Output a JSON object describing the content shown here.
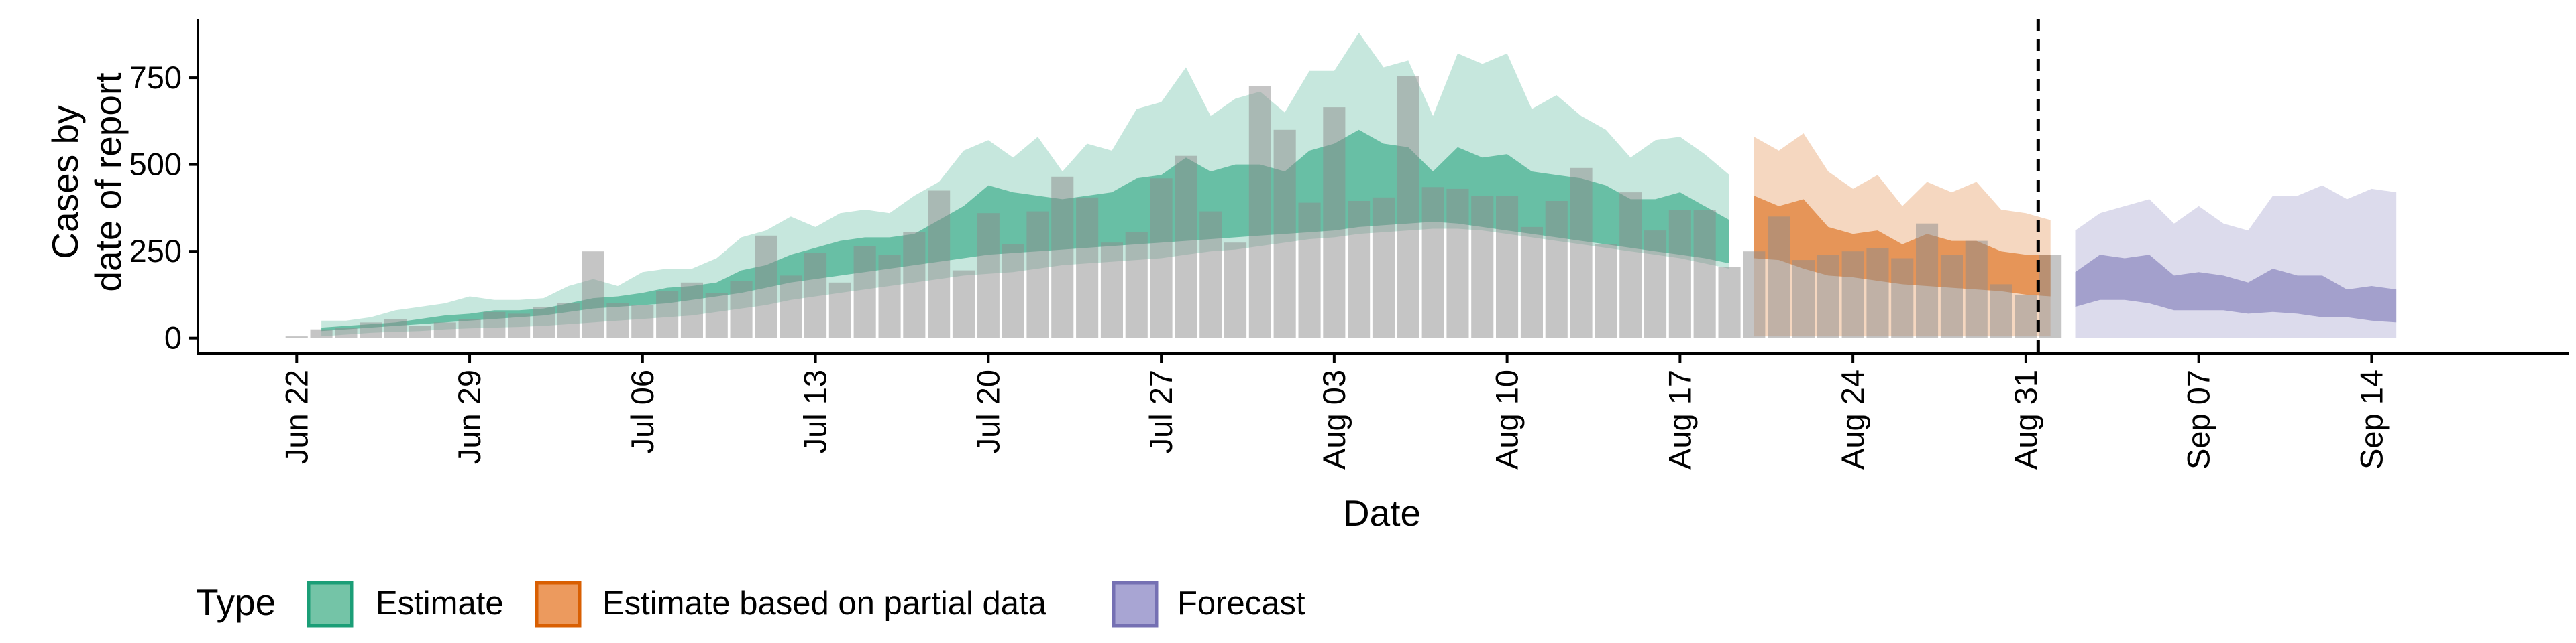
{
  "chart_data": {
    "type": "area",
    "xlabel": "Date",
    "ylabel_lines": [
      "Cases by",
      "date of report"
    ],
    "x_tick_labels": [
      "Jun 22",
      "Jun 29",
      "Jul 06",
      "Jul 13",
      "Jul 20",
      "Jul 27",
      "Aug 03",
      "Aug 10",
      "Aug 17",
      "Aug 24",
      "Aug 31",
      "Sep 07",
      "Sep 14"
    ],
    "x_tick_dates": [
      "2020-06-22",
      "2020-06-29",
      "2020-07-06",
      "2020-07-13",
      "2020-07-20",
      "2020-07-27",
      "2020-08-03",
      "2020-08-10",
      "2020-08-17",
      "2020-08-24",
      "2020-08-31",
      "2020-09-07",
      "2020-09-14"
    ],
    "xlim": [
      "2020-06-18",
      "2020-09-22"
    ],
    "y_ticks": [
      0,
      250,
      500,
      750
    ],
    "y_tick_labels": [
      "0",
      "250",
      "500",
      "750"
    ],
    "ylim": [
      -45,
      920
    ],
    "forecast_date": "2020-09-01",
    "legend": {
      "title": "Type",
      "position": "bottom",
      "items": [
        {
          "label": "Estimate",
          "color": "#1B9E77"
        },
        {
          "label": "Estimate based on partial data",
          "color": "#D95F02"
        },
        {
          "label": "Forecast",
          "color": "#7570B3"
        }
      ]
    },
    "reported_cases": {
      "dates": [
        "2020-06-22",
        "2020-06-23",
        "2020-06-24",
        "2020-06-25",
        "2020-06-26",
        "2020-06-27",
        "2020-06-28",
        "2020-06-29",
        "2020-06-30",
        "2020-07-01",
        "2020-07-02",
        "2020-07-03",
        "2020-07-04",
        "2020-07-05",
        "2020-07-06",
        "2020-07-07",
        "2020-07-08",
        "2020-07-09",
        "2020-07-10",
        "2020-07-11",
        "2020-07-12",
        "2020-07-13",
        "2020-07-14",
        "2020-07-15",
        "2020-07-16",
        "2020-07-17",
        "2020-07-18",
        "2020-07-19",
        "2020-07-20",
        "2020-07-21",
        "2020-07-22",
        "2020-07-23",
        "2020-07-24",
        "2020-07-25",
        "2020-07-26",
        "2020-07-27",
        "2020-07-28",
        "2020-07-29",
        "2020-07-30",
        "2020-07-31",
        "2020-08-01",
        "2020-08-02",
        "2020-08-03",
        "2020-08-04",
        "2020-08-05",
        "2020-08-06",
        "2020-08-07",
        "2020-08-08",
        "2020-08-09",
        "2020-08-10",
        "2020-08-11",
        "2020-08-12",
        "2020-08-13",
        "2020-08-14",
        "2020-08-15",
        "2020-08-16",
        "2020-08-17",
        "2020-08-18",
        "2020-08-19",
        "2020-08-20",
        "2020-08-21",
        "2020-08-22",
        "2020-08-23",
        "2020-08-24",
        "2020-08-25",
        "2020-08-26",
        "2020-08-27",
        "2020-08-28",
        "2020-08-29",
        "2020-08-30",
        "2020-08-31",
        "2020-09-01"
      ],
      "values": [
        5,
        25,
        30,
        45,
        55,
        35,
        45,
        55,
        75,
        70,
        90,
        100,
        250,
        100,
        95,
        135,
        160,
        130,
        165,
        295,
        180,
        245,
        160,
        265,
        240,
        305,
        425,
        195,
        360,
        270,
        365,
        465,
        405,
        275,
        305,
        460,
        525,
        365,
        275,
        725,
        600,
        390,
        665,
        395,
        405,
        755,
        435,
        430,
        410,
        410,
        320,
        395,
        490,
        270,
        420,
        310,
        370,
        370,
        205,
        250,
        350,
        225,
        240,
        250,
        260,
        230,
        330,
        240,
        280,
        155,
        125,
        240
      ]
    },
    "series": [
      {
        "name": "Estimate",
        "color": "#1B9E77",
        "dates": [
          "2020-06-23",
          "2020-06-24",
          "2020-06-25",
          "2020-06-26",
          "2020-06-27",
          "2020-06-28",
          "2020-06-29",
          "2020-06-30",
          "2020-07-01",
          "2020-07-02",
          "2020-07-03",
          "2020-07-04",
          "2020-07-05",
          "2020-07-06",
          "2020-07-07",
          "2020-07-08",
          "2020-07-09",
          "2020-07-10",
          "2020-07-11",
          "2020-07-12",
          "2020-07-13",
          "2020-07-14",
          "2020-07-15",
          "2020-07-16",
          "2020-07-17",
          "2020-07-18",
          "2020-07-19",
          "2020-07-20",
          "2020-07-21",
          "2020-07-22",
          "2020-07-23",
          "2020-07-24",
          "2020-07-25",
          "2020-07-26",
          "2020-07-27",
          "2020-07-28",
          "2020-07-29",
          "2020-07-30",
          "2020-07-31",
          "2020-08-01",
          "2020-08-02",
          "2020-08-03",
          "2020-08-04",
          "2020-08-05",
          "2020-08-06",
          "2020-08-07",
          "2020-08-08",
          "2020-08-09",
          "2020-08-10",
          "2020-08-11",
          "2020-08-12",
          "2020-08-13",
          "2020-08-14",
          "2020-08-15",
          "2020-08-16",
          "2020-08-17",
          "2020-08-18",
          "2020-08-19"
        ],
        "outer_lower": [
          5,
          10,
          15,
          18,
          20,
          25,
          28,
          30,
          32,
          35,
          40,
          45,
          50,
          55,
          60,
          65,
          75,
          85,
          95,
          110,
          120,
          130,
          140,
          150,
          160,
          170,
          180,
          185,
          190,
          200,
          210,
          215,
          220,
          225,
          230,
          240,
          250,
          255,
          265,
          275,
          285,
          290,
          300,
          305,
          310,
          315,
          315,
          310,
          300,
          290,
          280,
          270,
          260,
          250,
          240,
          230,
          215,
          200
        ],
        "outer_upper": [
          50,
          50,
          60,
          80,
          90,
          100,
          120,
          110,
          110,
          115,
          150,
          170,
          150,
          190,
          200,
          200,
          230,
          290,
          310,
          350,
          320,
          360,
          370,
          360,
          410,
          450,
          540,
          570,
          520,
          580,
          480,
          560,
          540,
          660,
          680,
          780,
          640,
          690,
          710,
          650,
          770,
          770,
          880,
          780,
          800,
          640,
          820,
          790,
          820,
          660,
          700,
          640,
          600,
          520,
          570,
          580,
          530,
          470
        ],
        "inner_lower": [
          20,
          25,
          30,
          35,
          40,
          45,
          50,
          55,
          60,
          65,
          75,
          85,
          90,
          95,
          100,
          110,
          120,
          130,
          145,
          160,
          170,
          180,
          190,
          200,
          210,
          220,
          230,
          240,
          245,
          250,
          255,
          260,
          265,
          270,
          275,
          280,
          285,
          290,
          295,
          300,
          305,
          310,
          320,
          325,
          330,
          335,
          330,
          320,
          310,
          300,
          290,
          280,
          270,
          260,
          250,
          240,
          230,
          215
        ],
        "inner_upper": [
          30,
          35,
          40,
          45,
          55,
          65,
          70,
          80,
          80,
          85,
          100,
          115,
          120,
          130,
          145,
          150,
          160,
          195,
          210,
          240,
          260,
          280,
          290,
          290,
          300,
          340,
          380,
          440,
          420,
          410,
          400,
          410,
          420,
          460,
          470,
          520,
          480,
          500,
          500,
          480,
          540,
          560,
          600,
          560,
          550,
          480,
          550,
          520,
          530,
          480,
          470,
          460,
          440,
          400,
          400,
          420,
          380,
          340
        ]
      },
      {
        "name": "Estimate based on partial data",
        "color": "#D95F02",
        "dates": [
          "2020-08-20",
          "2020-08-21",
          "2020-08-22",
          "2020-08-23",
          "2020-08-24",
          "2020-08-25",
          "2020-08-26",
          "2020-08-27",
          "2020-08-28",
          "2020-08-29",
          "2020-08-30",
          "2020-08-31",
          "2020-09-01"
        ],
        "outer_lower": [
          5,
          5,
          5,
          5,
          5,
          5,
          5,
          5,
          5,
          5,
          5,
          5,
          5
        ],
        "outer_upper": [
          580,
          540,
          590,
          480,
          430,
          470,
          380,
          450,
          420,
          450,
          370,
          360,
          340
        ],
        "inner_lower": [
          230,
          225,
          200,
          180,
          175,
          165,
          155,
          150,
          145,
          140,
          135,
          125,
          120
        ],
        "inner_upper": [
          410,
          380,
          400,
          320,
          300,
          310,
          270,
          300,
          280,
          280,
          250,
          240,
          240
        ]
      },
      {
        "name": "Forecast",
        "color": "#7570B3",
        "dates": [
          "2020-09-02",
          "2020-09-03",
          "2020-09-04",
          "2020-09-05",
          "2020-09-06",
          "2020-09-07",
          "2020-09-08",
          "2020-09-09",
          "2020-09-10",
          "2020-09-11",
          "2020-09-12",
          "2020-09-13",
          "2020-09-14",
          "2020-09-15"
        ],
        "outer_lower": [
          0,
          0,
          0,
          0,
          0,
          0,
          0,
          0,
          0,
          0,
          0,
          0,
          0,
          0
        ],
        "outer_upper": [
          310,
          360,
          380,
          400,
          330,
          380,
          330,
          310,
          410,
          410,
          440,
          400,
          430,
          420
        ],
        "inner_lower": [
          90,
          110,
          110,
          100,
          80,
          80,
          80,
          70,
          75,
          70,
          60,
          60,
          50,
          45
        ],
        "inner_upper": [
          190,
          240,
          230,
          240,
          180,
          190,
          180,
          160,
          200,
          180,
          180,
          140,
          150,
          140
        ]
      }
    ]
  }
}
